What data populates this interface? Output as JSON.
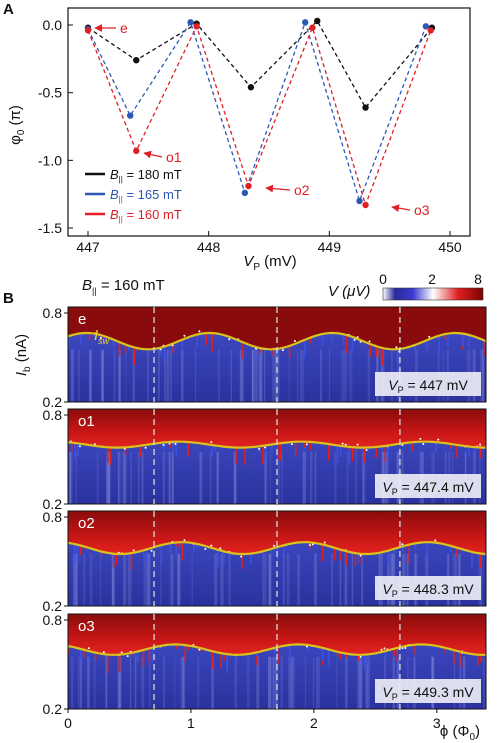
{
  "panel_a_label": "A",
  "panel_b_label": "B",
  "colors": {
    "black": "#111111",
    "blue": "#2c57b5",
    "red": "#e01f26",
    "yellow": "#d9c21c",
    "dark_red": "#7a0a0a"
  },
  "chart_data": [
    {
      "type": "line",
      "panel": "A",
      "xlabel": "V_P (mV)",
      "ylabel": "φ_0 (π)",
      "xlim": [
        447,
        450
      ],
      "ylim": [
        -1.5,
        0.1
      ],
      "xticks": [
        "447",
        "448",
        "449",
        "450"
      ],
      "yticks": [
        "0.0",
        "-0.5",
        "-1.0",
        "-1.5"
      ],
      "grid": false,
      "legend_position": "bottom-left",
      "series": [
        {
          "name": "B‖ = 180 mT",
          "color": "#111111",
          "x": [
            447.0,
            447.4,
            447.9,
            448.35,
            448.9,
            449.3,
            449.85
          ],
          "y": [
            -0.02,
            -0.26,
            0.01,
            -0.46,
            0.03,
            -0.61,
            -0.02
          ]
        },
        {
          "name": "B‖ = 165 mT",
          "color": "#2c57b5",
          "x": [
            447.0,
            447.35,
            447.85,
            448.3,
            448.8,
            449.25,
            449.8
          ],
          "y": [
            -0.03,
            -0.67,
            0.02,
            -1.24,
            0.02,
            -1.3,
            -0.01
          ]
        },
        {
          "name": "B‖ = 160 mT",
          "color": "#e01f26",
          "x": [
            447.0,
            447.4,
            447.9,
            448.33,
            448.86,
            449.3,
            449.84
          ],
          "y": [
            -0.04,
            -0.93,
            -0.01,
            -1.19,
            -0.02,
            -1.33,
            -0.04
          ]
        }
      ],
      "annotations": [
        "e",
        "o1",
        "o2",
        "o3"
      ]
    },
    {
      "type": "heatmap",
      "panel": "B",
      "title": "B‖ = 160 mT",
      "xlabel": "ϕ (Φ0)",
      "ylabel": "I_b (nA)",
      "colorbar_label": "V (μV)",
      "colorbar_ticks": [
        "0",
        "2",
        "8"
      ],
      "xlim": [
        0,
        3.4
      ],
      "ylim": [
        0.2,
        0.8
      ],
      "xticks": [
        "0",
        "1",
        "2",
        "3"
      ],
      "yticks": [
        "0.8",
        "0.2"
      ],
      "dashed_lines_x": [
        0.7,
        1.7,
        2.7
      ],
      "curve_label": "I_sw",
      "panels": [
        {
          "tag": "e",
          "vp": "V_P = 447 mV",
          "isw_mean": 0.61,
          "isw_amp": 0.055,
          "phase": 0.0
        },
        {
          "tag": "o1",
          "vp": "V_P = 447.4 mV",
          "isw_mean": 0.6,
          "isw_amp": 0.02,
          "phase": 0.5
        },
        {
          "tag": "o2",
          "vp": "V_P = 448.3 mV",
          "isw_mean": 0.59,
          "isw_amp": 0.04,
          "phase": 0.45
        },
        {
          "tag": "o3",
          "vp": "V_P = 449.3 mV",
          "isw_mean": 0.6,
          "isw_amp": 0.035,
          "phase": 0.55
        }
      ]
    }
  ],
  "labels": {
    "b_field": "B",
    "b_sub": "||",
    "b_val": " = 160 mT",
    "v_label": "V (μV)",
    "a_xlabel_main": "V",
    "a_xlabel_sub": "P",
    "a_xlabel_unit": " (mV)",
    "a_ylabel": "φ",
    "a_ylabel_sub": "0",
    "a_ylabel_unit": " (π)",
    "b_ylabel": "I",
    "b_ylabel_sub": "b",
    "b_ylabel_unit": " (nA)",
    "b_xlabel": "ϕ (Φ",
    "b_xlabel_sub": "0",
    "b_xlabel_close": ")",
    "isw_label": "I",
    "isw_sub": "sw",
    "legend_b": "B",
    "legend_sub": "||",
    "legend_180": " = 180 mT",
    "legend_165": " = 165 mT",
    "legend_160": " = 160 mT",
    "ann_e": "e",
    "ann_o1": "o1",
    "ann_o2": "o2",
    "ann_o3": "o3"
  }
}
